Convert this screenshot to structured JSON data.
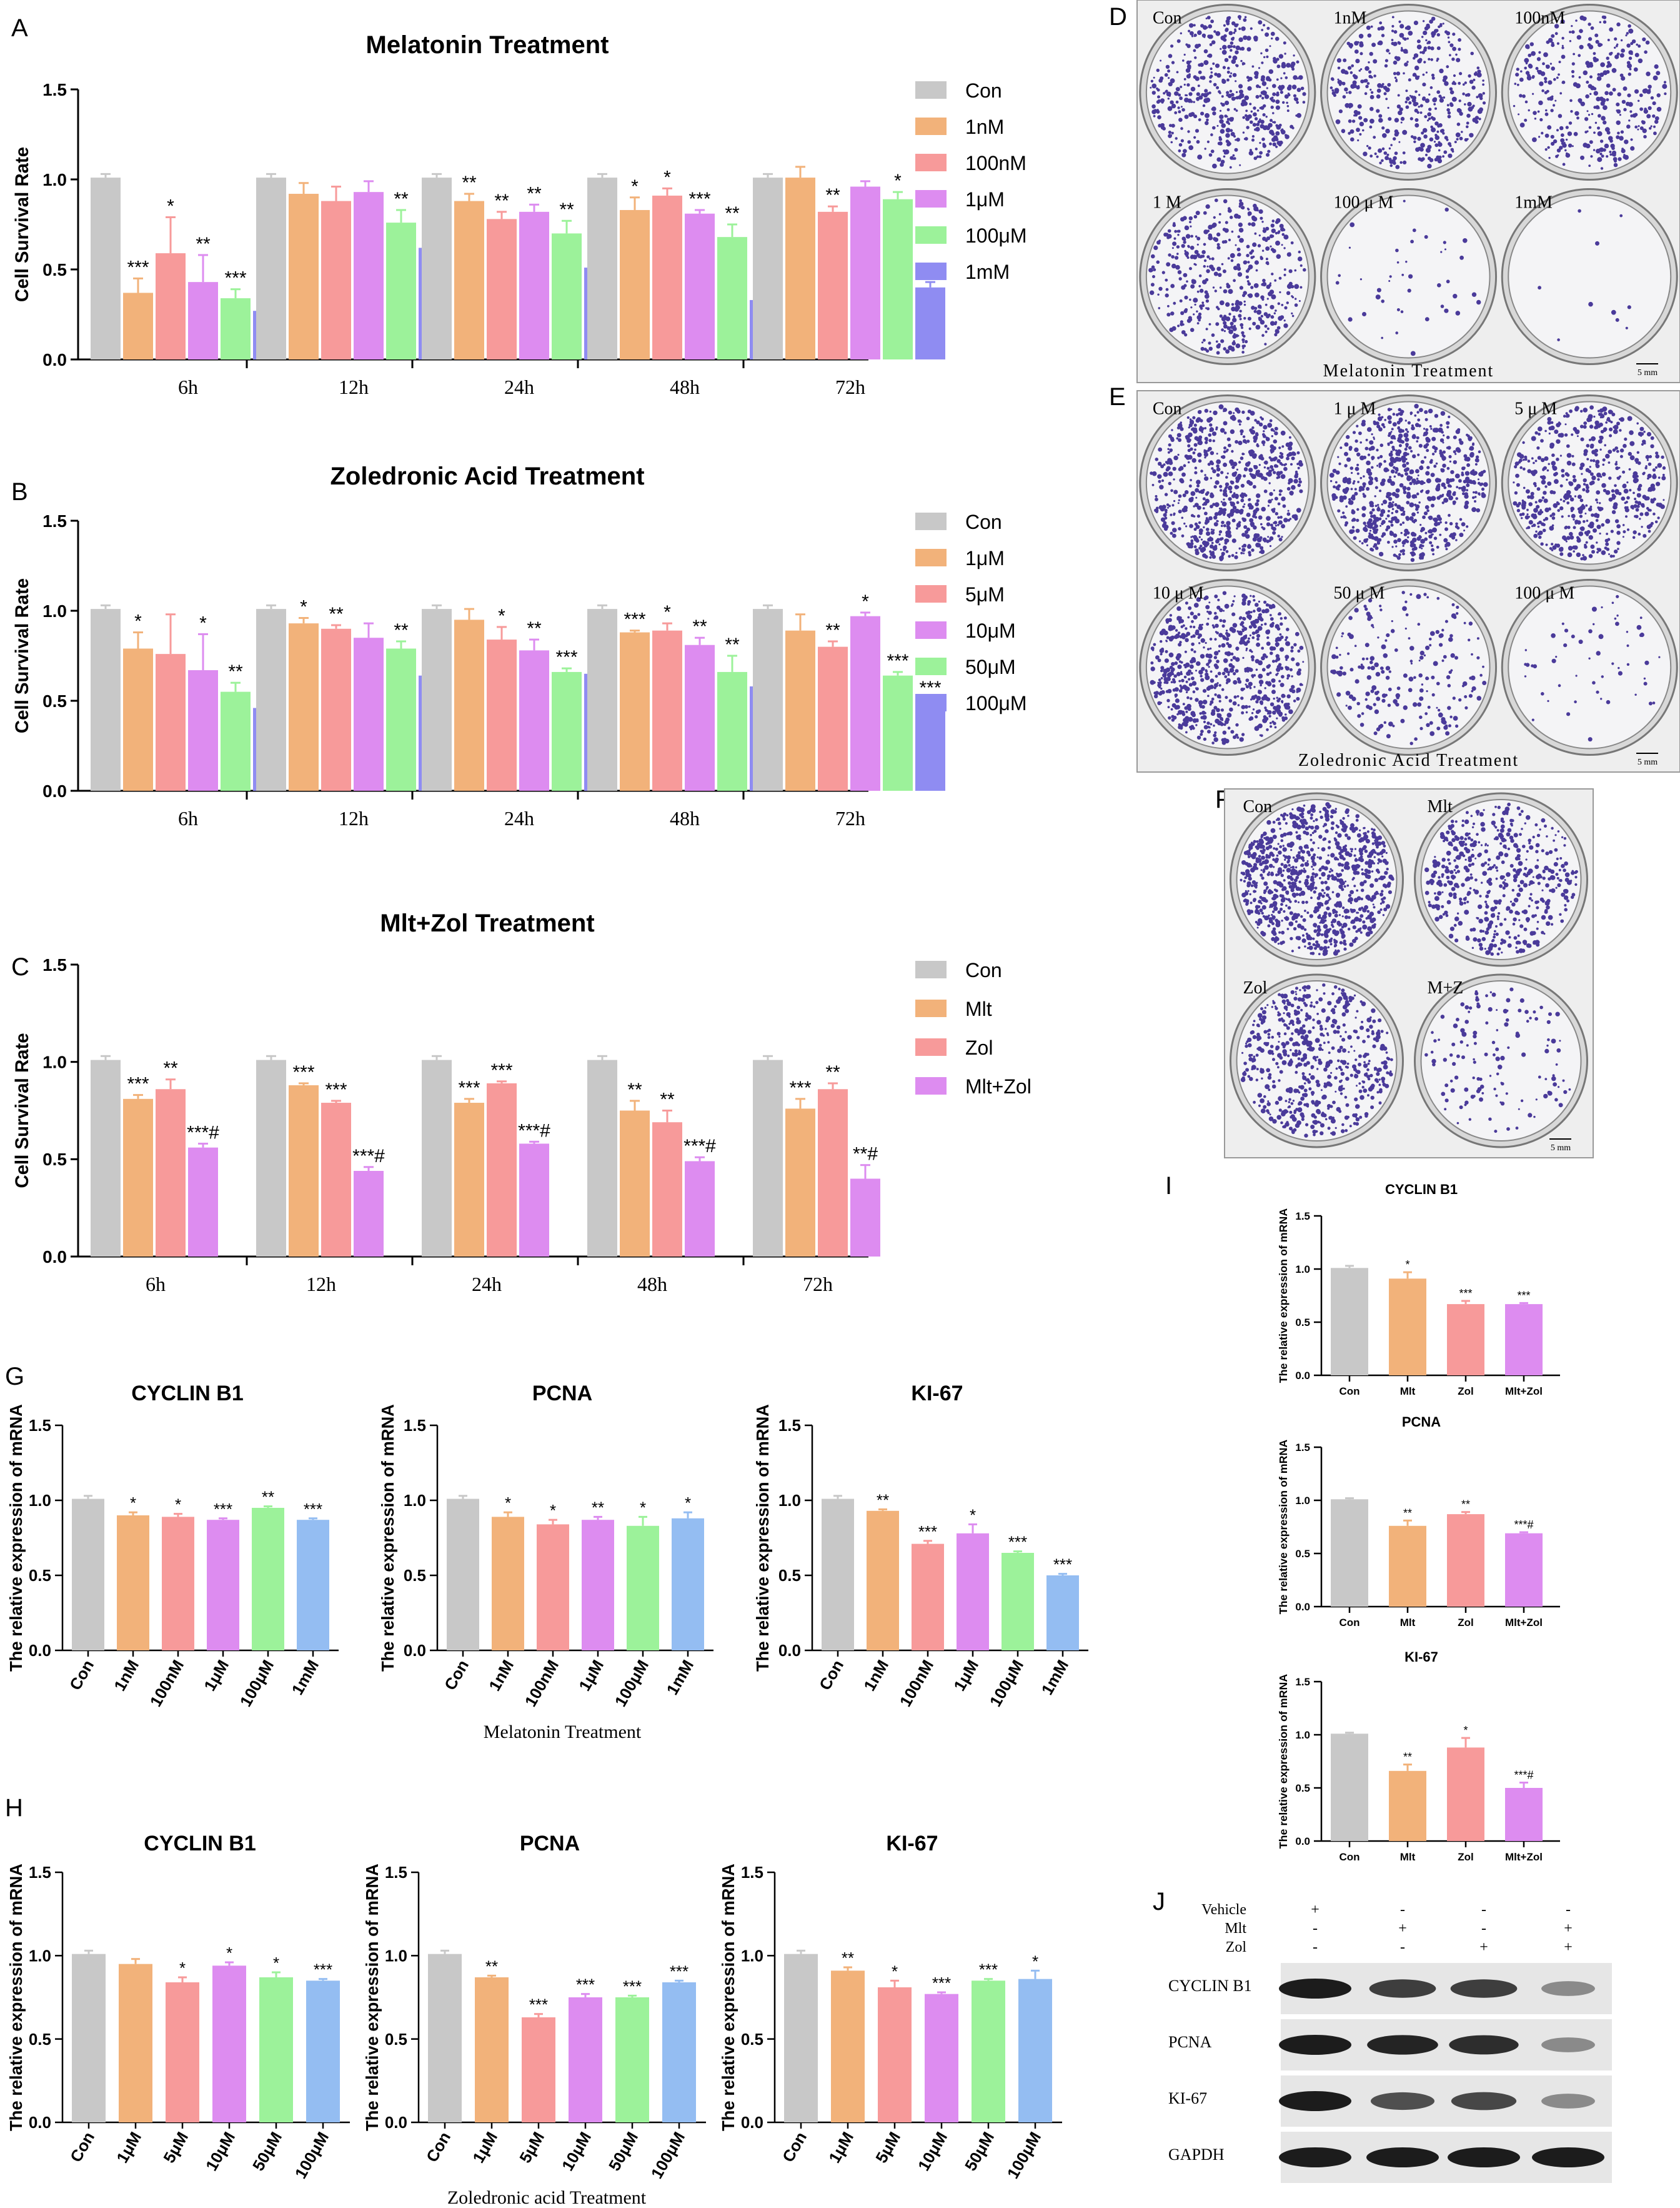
{
  "panel_letters": {
    "A": "A",
    "B": "B",
    "C": "C",
    "D": "D",
    "E": "E",
    "F": "F",
    "G": "G",
    "H": "H",
    "I": "I",
    "J": "J"
  },
  "colors": {
    "con": "#c8c8c8",
    "c1": "#f2b27a",
    "c2": "#f79a9a",
    "c3": "#dd8cf0",
    "c4": "#9cf29a",
    "c5": "#8f8cf2",
    "c6": "#94bdf2",
    "colony": "#4a3a9a"
  },
  "chart_data": [
    {
      "id": "A",
      "type": "bar",
      "title": "Melatonin Treatment",
      "ylabel": "Cell Survival Rate",
      "ylim": [
        0,
        1.5
      ],
      "yticks": [
        "0.0",
        "0.5",
        "1.0",
        "1.5"
      ],
      "categories": [
        "6h",
        "12h",
        "24h",
        "48h",
        "72h"
      ],
      "series": [
        {
          "name": "Con",
          "values": [
            1.01,
            1.01,
            1.01,
            1.01,
            1.01
          ],
          "err": [
            0.02,
            0.02,
            0.02,
            0.02,
            0.02
          ],
          "sig": [
            "",
            "",
            "",
            "",
            ""
          ]
        },
        {
          "name": "1nM",
          "values": [
            0.37,
            0.92,
            0.88,
            0.83,
            1.01
          ],
          "err": [
            0.08,
            0.06,
            0.04,
            0.07,
            0.06
          ],
          "sig": [
            "***",
            "",
            "**",
            "*",
            ""
          ]
        },
        {
          "name": "100nM",
          "values": [
            0.59,
            0.88,
            0.78,
            0.91,
            0.82
          ],
          "err": [
            0.2,
            0.08,
            0.04,
            0.04,
            0.03
          ],
          "sig": [
            "*",
            "",
            "**",
            "*",
            "**"
          ]
        },
        {
          "name": "1μM",
          "values": [
            0.43,
            0.93,
            0.82,
            0.81,
            0.96
          ],
          "err": [
            0.15,
            0.06,
            0.04,
            0.02,
            0.03
          ],
          "sig": [
            "**",
            "",
            "**",
            "***",
            ""
          ]
        },
        {
          "name": "100μM",
          "values": [
            0.34,
            0.76,
            0.7,
            0.68,
            0.89
          ],
          "err": [
            0.05,
            0.07,
            0.07,
            0.07,
            0.04
          ],
          "sig": [
            "***",
            "**",
            "**",
            "**",
            "*"
          ]
        },
        {
          "name": "1mM",
          "values": [
            0.27,
            0.62,
            0.51,
            0.33,
            0.4
          ],
          "err": [
            0.15,
            0.22,
            0.02,
            0.03,
            0.03
          ],
          "sig": [
            "**",
            "*",
            "***",
            "***",
            "***"
          ]
        }
      ]
    },
    {
      "id": "B",
      "type": "bar",
      "title": "Zoledronic Acid Treatment",
      "ylabel": "Cell Survival Rate",
      "ylim": [
        0,
        1.5
      ],
      "yticks": [
        "0.0",
        "0.5",
        "1.0",
        "1.5"
      ],
      "categories": [
        "6h",
        "12h",
        "24h",
        "48h",
        "72h"
      ],
      "series": [
        {
          "name": "Con",
          "values": [
            1.01,
            1.01,
            1.01,
            1.01,
            1.01
          ],
          "err": [
            0.02,
            0.02,
            0.02,
            0.02,
            0.02
          ],
          "sig": [
            "",
            "",
            "",
            "",
            ""
          ]
        },
        {
          "name": "1μM",
          "values": [
            0.79,
            0.93,
            0.95,
            0.88,
            0.89
          ],
          "err": [
            0.09,
            0.03,
            0.06,
            0.01,
            0.09
          ],
          "sig": [
            "*",
            "*",
            "",
            "***",
            ""
          ]
        },
        {
          "name": "5μM",
          "values": [
            0.76,
            0.9,
            0.84,
            0.89,
            0.8
          ],
          "err": [
            0.22,
            0.02,
            0.07,
            0.04,
            0.03
          ],
          "sig": [
            "",
            "**",
            "*",
            "*",
            "**"
          ]
        },
        {
          "name": "10μM",
          "values": [
            0.67,
            0.85,
            0.78,
            0.81,
            0.97
          ],
          "err": [
            0.2,
            0.08,
            0.06,
            0.04,
            0.02
          ],
          "sig": [
            "*",
            "",
            "**",
            "**",
            "*"
          ]
        },
        {
          "name": "50μM",
          "values": [
            0.55,
            0.79,
            0.66,
            0.66,
            0.64
          ],
          "err": [
            0.05,
            0.04,
            0.02,
            0.09,
            0.02
          ],
          "sig": [
            "**",
            "**",
            "***",
            "**",
            "***"
          ]
        },
        {
          "name": "100μM",
          "values": [
            0.46,
            0.64,
            0.65,
            0.58,
            0.49
          ],
          "err": [
            0.1,
            0.03,
            0.13,
            0.03,
            0.02
          ],
          "sig": [
            "**",
            "***",
            "*",
            "***",
            "***"
          ]
        }
      ]
    },
    {
      "id": "C",
      "type": "bar",
      "title": "Mlt+Zol Treatment",
      "ylabel": "Cell Survival Rate",
      "ylim": [
        0,
        1.5
      ],
      "yticks": [
        "0.0",
        "0.5",
        "1.0",
        "1.5"
      ],
      "categories": [
        "6h",
        "12h",
        "24h",
        "48h",
        "72h"
      ],
      "series": [
        {
          "name": "Con",
          "values": [
            1.01,
            1.01,
            1.01,
            1.01,
            1.01
          ],
          "err": [
            0.02,
            0.02,
            0.02,
            0.02,
            0.02
          ],
          "sig": [
            "",
            "",
            "",
            "",
            ""
          ]
        },
        {
          "name": "Mlt",
          "values": [
            0.81,
            0.88,
            0.79,
            0.75,
            0.76
          ],
          "err": [
            0.02,
            0.01,
            0.02,
            0.05,
            0.05
          ],
          "sig": [
            "***",
            "***",
            "***",
            "**",
            "***"
          ]
        },
        {
          "name": "Zol",
          "values": [
            0.86,
            0.79,
            0.89,
            0.69,
            0.86
          ],
          "err": [
            0.05,
            0.01,
            0.01,
            0.06,
            0.03
          ],
          "sig": [
            "**",
            "***",
            "***",
            "**",
            "**"
          ]
        },
        {
          "name": "Mlt+Zol",
          "values": [
            0.56,
            0.44,
            0.58,
            0.49,
            0.4
          ],
          "err": [
            0.02,
            0.02,
            0.01,
            0.02,
            0.07
          ],
          "sig": [
            "***#",
            "***#",
            "***#",
            "***#",
            "**#"
          ]
        }
      ]
    },
    {
      "id": "G1",
      "type": "bar",
      "title": "CYCLIN B1",
      "ylabel": "The relative expression of mRNA",
      "ylim": [
        0,
        1.5
      ],
      "yticks": [
        "0.0",
        "0.5",
        "1.0",
        "1.5"
      ],
      "categories": [
        "Con",
        "1nM",
        "100nM",
        "1μM",
        "100μM",
        "1mM"
      ],
      "values": [
        1.01,
        0.9,
        0.89,
        0.87,
        0.95,
        0.87
      ],
      "err": [
        0.02,
        0.02,
        0.02,
        0.01,
        0.01,
        0.01
      ],
      "sig": [
        "",
        "*",
        "*",
        "***",
        "**",
        "***"
      ]
    },
    {
      "id": "G2",
      "type": "bar",
      "title": "PCNA",
      "ylabel": "The relative expression of mRNA",
      "ylim": [
        0,
        1.5
      ],
      "yticks": [
        "0.0",
        "0.5",
        "1.0",
        "1.5"
      ],
      "categories": [
        "Con",
        "1nM",
        "100nM",
        "1μM",
        "100μM",
        "1mM"
      ],
      "values": [
        1.01,
        0.89,
        0.84,
        0.87,
        0.83,
        0.88
      ],
      "err": [
        0.02,
        0.03,
        0.03,
        0.02,
        0.06,
        0.04
      ],
      "sig": [
        "",
        "*",
        "*",
        "**",
        "*",
        "*"
      ]
    },
    {
      "id": "G3",
      "type": "bar",
      "title": "KI-67",
      "ylabel": "The relative expression of mRNA",
      "ylim": [
        0,
        1.5
      ],
      "yticks": [
        "0.0",
        "0.5",
        "1.0",
        "1.5"
      ],
      "categories": [
        "Con",
        "1nM",
        "100nM",
        "1μM",
        "100μM",
        "1mM"
      ],
      "values": [
        1.01,
        0.93,
        0.71,
        0.78,
        0.65,
        0.5
      ],
      "err": [
        0.02,
        0.01,
        0.02,
        0.06,
        0.01,
        0.01
      ],
      "sig": [
        "",
        "**",
        "***",
        "*",
        "***",
        "***"
      ]
    },
    {
      "id": "H1",
      "type": "bar",
      "title": "CYCLIN B1",
      "ylabel": "The relative expression of mRNA",
      "ylim": [
        0,
        1.5
      ],
      "yticks": [
        "0.0",
        "0.5",
        "1.0",
        "1.5"
      ],
      "categories": [
        "Con",
        "1μM",
        "5μM",
        "10μM",
        "50μM",
        "100μM"
      ],
      "values": [
        1.01,
        0.95,
        0.84,
        0.94,
        0.87,
        0.85
      ],
      "err": [
        0.02,
        0.03,
        0.03,
        0.02,
        0.03,
        0.01
      ],
      "sig": [
        "",
        "",
        "*",
        "*",
        "*",
        "***"
      ]
    },
    {
      "id": "H2",
      "type": "bar",
      "title": "PCNA",
      "ylabel": "The relative expression of mRNA",
      "ylim": [
        0,
        1.5
      ],
      "yticks": [
        "0.0",
        "0.5",
        "1.0",
        "1.5"
      ],
      "categories": [
        "Con",
        "1μM",
        "5μM",
        "10μM",
        "50μM",
        "100μM"
      ],
      "values": [
        1.01,
        0.87,
        0.63,
        0.75,
        0.75,
        0.84
      ],
      "err": [
        0.02,
        0.01,
        0.02,
        0.02,
        0.01,
        0.01
      ],
      "sig": [
        "",
        "**",
        "***",
        "***",
        "***",
        "***"
      ]
    },
    {
      "id": "H3",
      "type": "bar",
      "title": "KI-67",
      "ylabel": "The relative expression of mRNA",
      "ylim": [
        0,
        1.5
      ],
      "yticks": [
        "0.0",
        "0.5",
        "1.0",
        "1.5"
      ],
      "categories": [
        "Con",
        "1μM",
        "5μM",
        "10μM",
        "50μM",
        "100μM"
      ],
      "values": [
        1.01,
        0.91,
        0.81,
        0.77,
        0.85,
        0.86
      ],
      "err": [
        0.02,
        0.02,
        0.04,
        0.01,
        0.01,
        0.05
      ],
      "sig": [
        "",
        "**",
        "*",
        "***",
        "***",
        "*"
      ]
    },
    {
      "id": "I1",
      "type": "bar",
      "title": "CYCLIN B1",
      "ylabel": "The relative expression of mRNA",
      "ylim": [
        0,
        1.5
      ],
      "yticks": [
        "0.0",
        "0.5",
        "1.0",
        "1.5"
      ],
      "categories": [
        "Con",
        "Mlt",
        "Zol",
        "Mlt+Zol"
      ],
      "values": [
        1.01,
        0.91,
        0.67,
        0.67
      ],
      "err": [
        0.02,
        0.06,
        0.03,
        0.01
      ],
      "sig": [
        "",
        "*",
        "***",
        "***"
      ]
    },
    {
      "id": "I2",
      "type": "bar",
      "title": "PCNA",
      "ylabel": "The relative expression of mRNA",
      "ylim": [
        0,
        1.5
      ],
      "yticks": [
        "0.0",
        "0.5",
        "1.0",
        "1.5"
      ],
      "categories": [
        "Con",
        "Mlt",
        "Zol",
        "Mlt+Zol"
      ],
      "values": [
        1.01,
        0.76,
        0.87,
        0.69
      ],
      "err": [
        0.01,
        0.05,
        0.02,
        0.01
      ],
      "sig": [
        "",
        "**",
        "**",
        "***#"
      ]
    },
    {
      "id": "I3",
      "type": "bar",
      "title": "KI-67",
      "ylabel": "The relative expression of mRNA",
      "ylim": [
        0,
        1.5
      ],
      "yticks": [
        "0.0",
        "0.5",
        "1.0",
        "1.5"
      ],
      "categories": [
        "Con",
        "Mlt",
        "Zol",
        "Mlt+Zol"
      ],
      "values": [
        1.01,
        0.66,
        0.88,
        0.5
      ],
      "err": [
        0.01,
        0.06,
        0.09,
        0.05
      ],
      "sig": [
        "",
        "**",
        "*",
        "***#"
      ]
    }
  ],
  "group_labels": {
    "G": "Melatonin Treatment",
    "H": "Zoledronic acid Treatment"
  },
  "plates": {
    "D": {
      "labels": [
        "Con",
        "1nM",
        "100nM",
        "1 M",
        "100 μ M",
        "1mM"
      ],
      "caption": "Melatonin Treatment",
      "scale": "5 mm",
      "density": [
        1,
        0.85,
        0.7,
        0.9,
        0.08,
        0.02
      ]
    },
    "E": {
      "labels": [
        "Con",
        "1 μ M",
        "5 μ M",
        "10 μ M",
        "50 μ M",
        "100 μ M"
      ],
      "caption": "Zoledronic Acid Treatment",
      "scale": "5 mm",
      "density": [
        1,
        1,
        0.8,
        1,
        0.3,
        0.08
      ]
    },
    "F": {
      "labels": [
        "Con",
        "Mlt",
        "Zol",
        "M+Z"
      ],
      "scale": "5 mm",
      "density": [
        1,
        0.55,
        0.65,
        0.15
      ]
    }
  },
  "western": {
    "conditions": [
      {
        "name": "Vehicle",
        "marks": [
          "+",
          "-",
          "-",
          "-"
        ]
      },
      {
        "name": "Mlt",
        "marks": [
          "-",
          "+",
          "-",
          "+"
        ]
      },
      {
        "name": "Zol",
        "marks": [
          "-",
          "-",
          "+",
          "+"
        ]
      }
    ],
    "bands": [
      {
        "name": "CYCLIN B1",
        "intensity": [
          1,
          0.8,
          0.8,
          0.35
        ]
      },
      {
        "name": "PCNA",
        "intensity": [
          1,
          0.95,
          0.9,
          0.35
        ]
      },
      {
        "name": "KI-67",
        "intensity": [
          1,
          0.7,
          0.75,
          0.35
        ]
      },
      {
        "name": "GAPDH",
        "intensity": [
          1,
          1,
          1,
          1
        ]
      }
    ]
  }
}
